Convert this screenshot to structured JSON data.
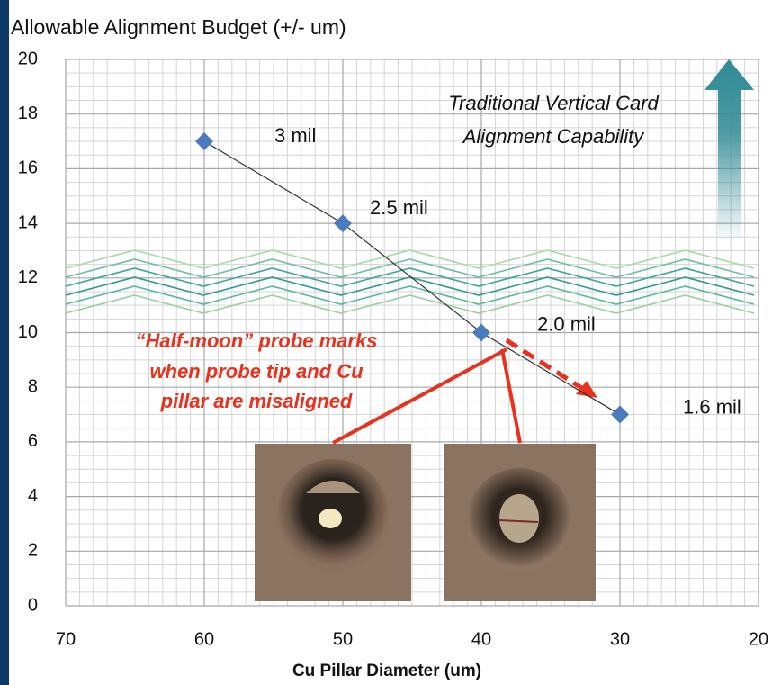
{
  "chart_data": {
    "type": "line",
    "title": "Allowable Alignment Budget (+/- um)",
    "x_axis_label": "Cu Pillar Diameter (um)",
    "x": [
      60,
      50,
      40,
      30
    ],
    "series": [
      {
        "color": "#4a7bbf",
        "values": [
          17,
          14,
          10,
          7
        ]
      }
    ],
    "point_labels": [
      "3 mil",
      "2.5 mil",
      "2.0 mil",
      "1.6 mil"
    ],
    "xlim": [
      70,
      20
    ],
    "ylim": [
      0,
      20
    ],
    "xticks": [
      70,
      60,
      50,
      40,
      30,
      20
    ],
    "yticks": [
      0,
      2,
      4,
      6,
      8,
      10,
      12,
      14,
      16,
      18,
      20
    ],
    "grid": true,
    "annotations": [
      [
        "Traditional Vertical Card",
        "Alignment Capability"
      ],
      [
        "“Half-moon” probe marks",
        "when probe tip and Cu",
        "pillar are misaligned"
      ]
    ]
  }
}
